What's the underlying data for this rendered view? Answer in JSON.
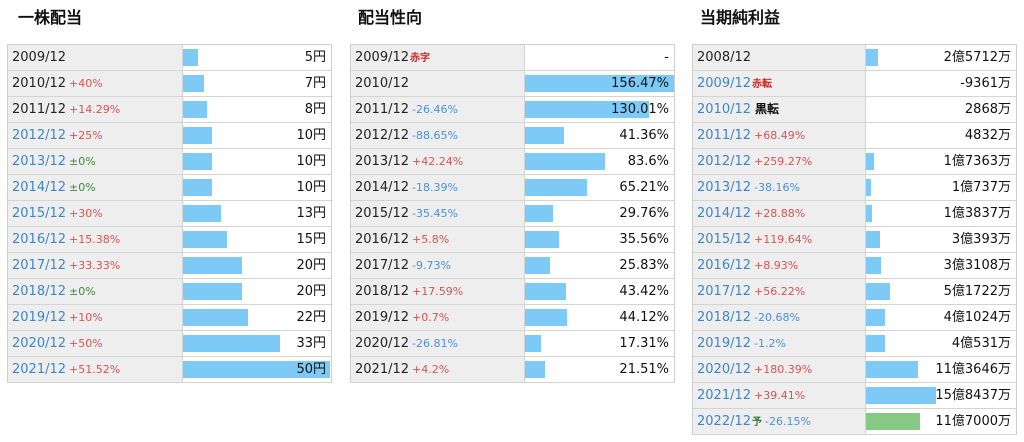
{
  "sections": [
    {
      "title": "一株配当",
      "max": 50,
      "rows": [
        {
          "year": "2009/12",
          "change": "",
          "change_color": "",
          "tag": "",
          "tag_color": "",
          "value": "5円",
          "num": 5,
          "year_blue": false
        },
        {
          "year": "2010/12",
          "change": "+40%",
          "change_color": "red",
          "tag": "",
          "tag_color": "",
          "value": "7円",
          "num": 7,
          "year_blue": false
        },
        {
          "year": "2011/12",
          "change": "+14.29%",
          "change_color": "red",
          "tag": "",
          "tag_color": "",
          "value": "8円",
          "num": 8,
          "year_blue": false
        },
        {
          "year": "2012/12",
          "change": "+25%",
          "change_color": "red",
          "tag": "",
          "tag_color": "",
          "value": "10円",
          "num": 10,
          "year_blue": true
        },
        {
          "year": "2013/12",
          "change": "±0%",
          "change_color": "green",
          "tag": "",
          "tag_color": "",
          "value": "10円",
          "num": 10,
          "year_blue": true
        },
        {
          "year": "2014/12",
          "change": "±0%",
          "change_color": "green",
          "tag": "",
          "tag_color": "",
          "value": "10円",
          "num": 10,
          "year_blue": true
        },
        {
          "year": "2015/12",
          "change": "+30%",
          "change_color": "red",
          "tag": "",
          "tag_color": "",
          "value": "13円",
          "num": 13,
          "year_blue": true
        },
        {
          "year": "2016/12",
          "change": "+15.38%",
          "change_color": "red",
          "tag": "",
          "tag_color": "",
          "value": "15円",
          "num": 15,
          "year_blue": true
        },
        {
          "year": "2017/12",
          "change": "+33.33%",
          "change_color": "red",
          "tag": "",
          "tag_color": "",
          "value": "20円",
          "num": 20,
          "year_blue": true
        },
        {
          "year": "2018/12",
          "change": "±0%",
          "change_color": "green",
          "tag": "",
          "tag_color": "",
          "value": "20円",
          "num": 20,
          "year_blue": true
        },
        {
          "year": "2019/12",
          "change": "+10%",
          "change_color": "red",
          "tag": "",
          "tag_color": "",
          "value": "22円",
          "num": 22,
          "year_blue": true
        },
        {
          "year": "2020/12",
          "change": "+50%",
          "change_color": "red",
          "tag": "",
          "tag_color": "",
          "value": "33円",
          "num": 33,
          "year_blue": true
        },
        {
          "year": "2021/12",
          "change": "+51.52%",
          "change_color": "red",
          "tag": "",
          "tag_color": "",
          "value": "50円",
          "num": 50,
          "year_blue": true
        }
      ]
    },
    {
      "title": "配当性向",
      "max": 156.47,
      "rows": [
        {
          "year": "2009/12",
          "change": "",
          "change_color": "",
          "tag": "赤字",
          "tag_color": "red",
          "value": "-",
          "num": 0,
          "year_blue": false
        },
        {
          "year": "2010/12",
          "change": "",
          "change_color": "",
          "tag": "",
          "tag_color": "",
          "value": "156.47%",
          "num": 156.47,
          "year_blue": false
        },
        {
          "year": "2011/12",
          "change": "-26.46%",
          "change_color": "blue",
          "tag": "",
          "tag_color": "",
          "value": "130.01%",
          "num": 130.01,
          "year_blue": false
        },
        {
          "year": "2012/12",
          "change": "-88.65%",
          "change_color": "blue",
          "tag": "",
          "tag_color": "",
          "value": "41.36%",
          "num": 41.36,
          "year_blue": false
        },
        {
          "year": "2013/12",
          "change": "+42.24%",
          "change_color": "red",
          "tag": "",
          "tag_color": "",
          "value": "83.6%",
          "num": 83.6,
          "year_blue": false
        },
        {
          "year": "2014/12",
          "change": "-18.39%",
          "change_color": "blue",
          "tag": "",
          "tag_color": "",
          "value": "65.21%",
          "num": 65.21,
          "year_blue": false
        },
        {
          "year": "2015/12",
          "change": "-35.45%",
          "change_color": "blue",
          "tag": "",
          "tag_color": "",
          "value": "29.76%",
          "num": 29.76,
          "year_blue": false
        },
        {
          "year": "2016/12",
          "change": "+5.8%",
          "change_color": "red",
          "tag": "",
          "tag_color": "",
          "value": "35.56%",
          "num": 35.56,
          "year_blue": false
        },
        {
          "year": "2017/12",
          "change": "-9.73%",
          "change_color": "blue",
          "tag": "",
          "tag_color": "",
          "value": "25.83%",
          "num": 25.83,
          "year_blue": false
        },
        {
          "year": "2018/12",
          "change": "+17.59%",
          "change_color": "red",
          "tag": "",
          "tag_color": "",
          "value": "43.42%",
          "num": 43.42,
          "year_blue": false
        },
        {
          "year": "2019/12",
          "change": "+0.7%",
          "change_color": "red",
          "tag": "",
          "tag_color": "",
          "value": "44.12%",
          "num": 44.12,
          "year_blue": false
        },
        {
          "year": "2020/12",
          "change": "-26.81%",
          "change_color": "blue",
          "tag": "",
          "tag_color": "",
          "value": "17.31%",
          "num": 17.31,
          "year_blue": false
        },
        {
          "year": "2021/12",
          "change": "+4.2%",
          "change_color": "red",
          "tag": "",
          "tag_color": "",
          "value": "21.51%",
          "num": 21.51,
          "year_blue": false
        }
      ]
    },
    {
      "title": "当期純利益",
      "max": 153000,
      "rows": [
        {
          "year": "2008/12",
          "change": "",
          "change_color": "",
          "tag": "",
          "tag_color": "",
          "value": "2億5712万",
          "num": 25712,
          "year_blue": false
        },
        {
          "year": "2009/12",
          "change": "",
          "change_color": "",
          "tag": "赤転",
          "tag_color": "red",
          "value": "-9361万",
          "num": 0,
          "year_blue": true
        },
        {
          "year": "2010/12",
          "change": "",
          "change_color": "",
          "tag": "黒転",
          "tag_color": "black",
          "value": "2868万",
          "num": 0,
          "year_blue": true
        },
        {
          "year": "2011/12",
          "change": "+68.49%",
          "change_color": "red",
          "tag": "",
          "tag_color": "",
          "value": "4832万",
          "num": 0,
          "year_blue": true
        },
        {
          "year": "2012/12",
          "change": "+259.27%",
          "change_color": "red",
          "tag": "",
          "tag_color": "",
          "value": "1億7363万",
          "num": 17363,
          "year_blue": true
        },
        {
          "year": "2013/12",
          "change": "-38.16%",
          "change_color": "blue",
          "tag": "",
          "tag_color": "",
          "value": "1億737万",
          "num": 10737,
          "year_blue": true
        },
        {
          "year": "2014/12",
          "change": "+28.88%",
          "change_color": "red",
          "tag": "",
          "tag_color": "",
          "value": "1億3837万",
          "num": 13837,
          "year_blue": true
        },
        {
          "year": "2015/12",
          "change": "+119.64%",
          "change_color": "red",
          "tag": "",
          "tag_color": "",
          "value": "3億393万",
          "num": 30393,
          "year_blue": true
        },
        {
          "year": "2016/12",
          "change": "+8.93%",
          "change_color": "red",
          "tag": "",
          "tag_color": "",
          "value": "3億3108万",
          "num": 33108,
          "year_blue": true
        },
        {
          "year": "2017/12",
          "change": "+56.22%",
          "change_color": "red",
          "tag": "",
          "tag_color": "",
          "value": "5億1722万",
          "num": 51722,
          "year_blue": true
        },
        {
          "year": "2018/12",
          "change": "-20.68%",
          "change_color": "blue",
          "tag": "",
          "tag_color": "",
          "value": "4億1024万",
          "num": 41024,
          "year_blue": true
        },
        {
          "year": "2019/12",
          "change": "-1.2%",
          "change_color": "blue",
          "tag": "",
          "tag_color": "",
          "value": "4億531万",
          "num": 40531,
          "year_blue": true
        },
        {
          "year": "2020/12",
          "change": "+180.39%",
          "change_color": "red",
          "tag": "",
          "tag_color": "",
          "value": "11億3646万",
          "num": 113646,
          "year_blue": true
        },
        {
          "year": "2021/12",
          "change": "+39.41%",
          "change_color": "red",
          "tag": "",
          "tag_color": "",
          "value": "15億8437万",
          "num": 158437,
          "year_blue": true
        },
        {
          "year": "2022/12",
          "change": "-26.15%",
          "change_color": "blue",
          "tag": "予",
          "tag_color": "green",
          "value": "11億7000万",
          "num": 117000,
          "year_blue": true,
          "forecast": true
        }
      ]
    }
  ],
  "colors": {
    "bar": "#7ccaf5",
    "forecast_bar": "#85c985",
    "red": "#d9534f",
    "blue": "#4a90d9",
    "green": "#3c8a3c"
  }
}
